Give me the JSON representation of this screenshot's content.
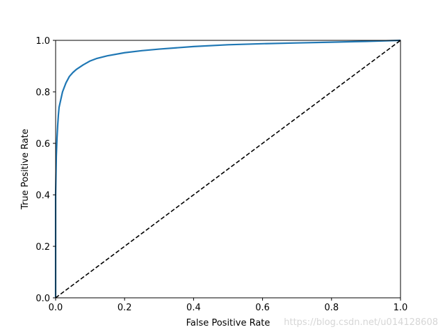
{
  "chart_data": {
    "type": "line",
    "title": "",
    "xlabel": "False Positive Rate",
    "ylabel": "True Positive Rate",
    "xlim": [
      0,
      1
    ],
    "ylim": [
      0,
      1
    ],
    "xticks": [
      "0.0",
      "0.2",
      "0.4",
      "0.6",
      "0.8",
      "1.0"
    ],
    "yticks": [
      "0.0",
      "0.2",
      "0.4",
      "0.6",
      "0.8",
      "1.0"
    ],
    "grid": false,
    "legend": "none",
    "series": [
      {
        "color": "#1f77b4",
        "style": "solid",
        "x": [
          0,
          0.0,
          0.002,
          0.004,
          0.006,
          0.008,
          0.01,
          0.015,
          0.02,
          0.03,
          0.04,
          0.05,
          0.06,
          0.08,
          0.1,
          0.12,
          0.15,
          0.2,
          0.25,
          0.3,
          0.4,
          0.5,
          0.6,
          0.7,
          0.8,
          0.9,
          0.95,
          1.0
        ],
        "y": [
          0,
          0.4,
          0.55,
          0.62,
          0.67,
          0.71,
          0.74,
          0.77,
          0.8,
          0.835,
          0.86,
          0.875,
          0.887,
          0.905,
          0.92,
          0.93,
          0.94,
          0.952,
          0.96,
          0.966,
          0.976,
          0.983,
          0.987,
          0.99,
          0.993,
          0.996,
          0.998,
          1.0
        ]
      },
      {
        "color": "#000000",
        "style": "dashed",
        "x": [
          0,
          1
        ],
        "y": [
          0,
          1
        ]
      }
    ]
  },
  "watermark": "https://blog.csdn.net/u014128608"
}
